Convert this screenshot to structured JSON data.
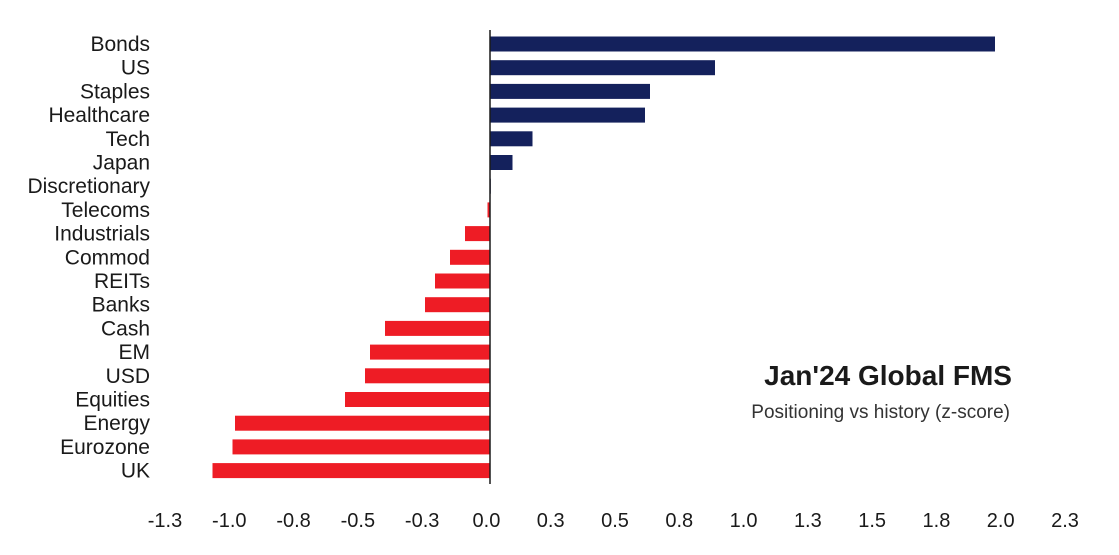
{
  "chart_data": {
    "type": "bar",
    "orientation": "horizontal",
    "title": "Jan'24 Global FMS",
    "subtitle": "Positioning vs history (z-score)",
    "categories": [
      "Bonds",
      "US",
      "Staples",
      "Healthcare",
      "Tech",
      "Japan",
      "Discretionary",
      "Telecoms",
      "Industrials",
      "Commod",
      "REITs",
      "Banks",
      "Cash",
      "EM",
      "USD",
      "Equities",
      "Energy",
      "Eurozone",
      "UK"
    ],
    "values": [
      2.02,
      0.9,
      0.64,
      0.62,
      0.17,
      0.09,
      0.0,
      -0.01,
      -0.1,
      -0.16,
      -0.22,
      -0.26,
      -0.42,
      -0.48,
      -0.5,
      -0.58,
      -1.02,
      -1.03,
      -1.11
    ],
    "xlim": [
      -1.3,
      2.3
    ],
    "xticks": [
      "-1.3",
      "-1.0",
      "-0.8",
      "-0.5",
      "-0.3",
      "0.0",
      "0.3",
      "0.5",
      "0.8",
      "1.0",
      "1.3",
      "1.5",
      "1.8",
      "2.0",
      "2.3"
    ],
    "grid": false,
    "colors": {
      "positive": "#14215c",
      "negative": "#ee1c25",
      "axis": "#1a1a1a"
    }
  }
}
